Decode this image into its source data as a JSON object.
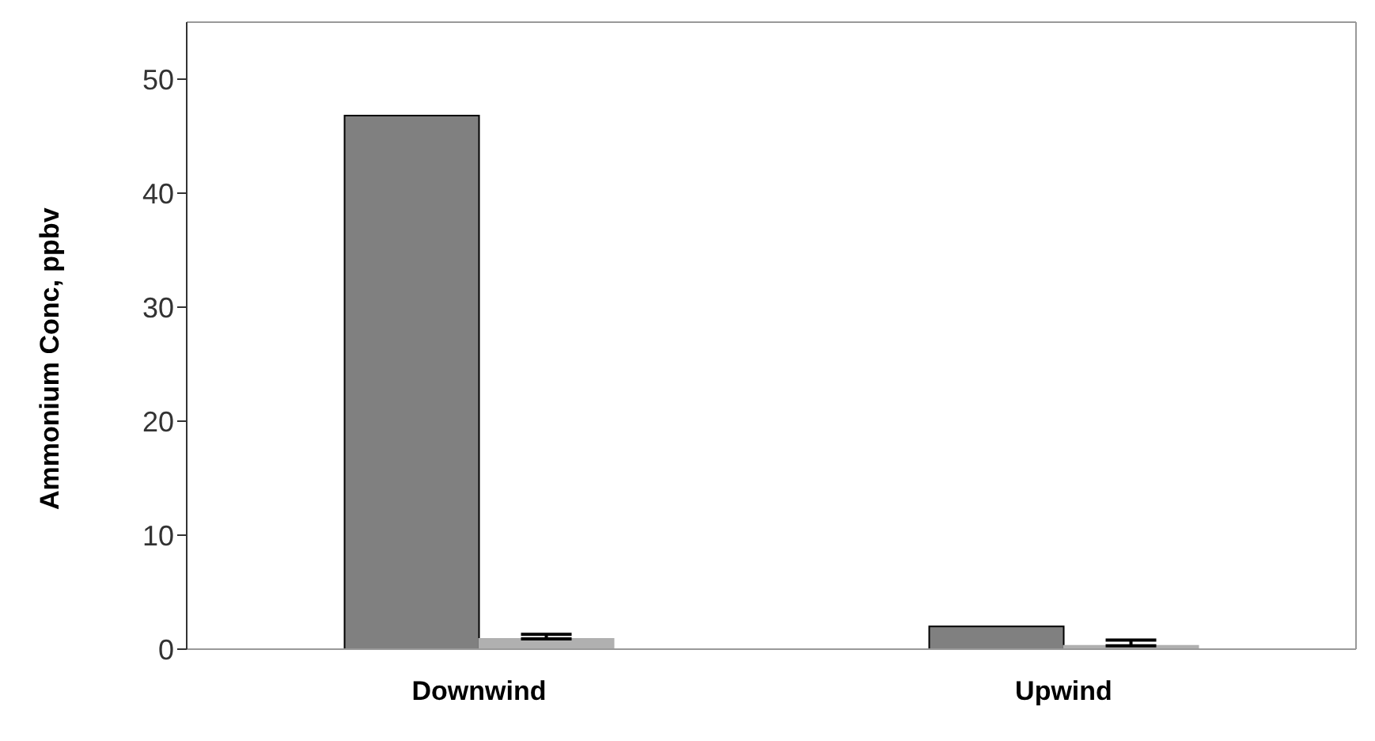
{
  "chart_data": {
    "type": "bar",
    "ylabel": "Ammonium Conc, ppbv",
    "categories": [
      "Downwind",
      "Upwind"
    ],
    "series": [
      {
        "color": "#808080",
        "values": [
          46.8,
          2.0
        ]
      },
      {
        "color": "#b0b0b0",
        "values": [
          0.9,
          0.3
        ],
        "errors": [
          [
            0.9,
            1.3
          ],
          [
            0.3,
            0.8
          ]
        ]
      }
    ],
    "ylim": [
      0,
      55
    ],
    "yticks": [
      0,
      10,
      20,
      30,
      40,
      50
    ],
    "grid": false,
    "legend": false
  }
}
